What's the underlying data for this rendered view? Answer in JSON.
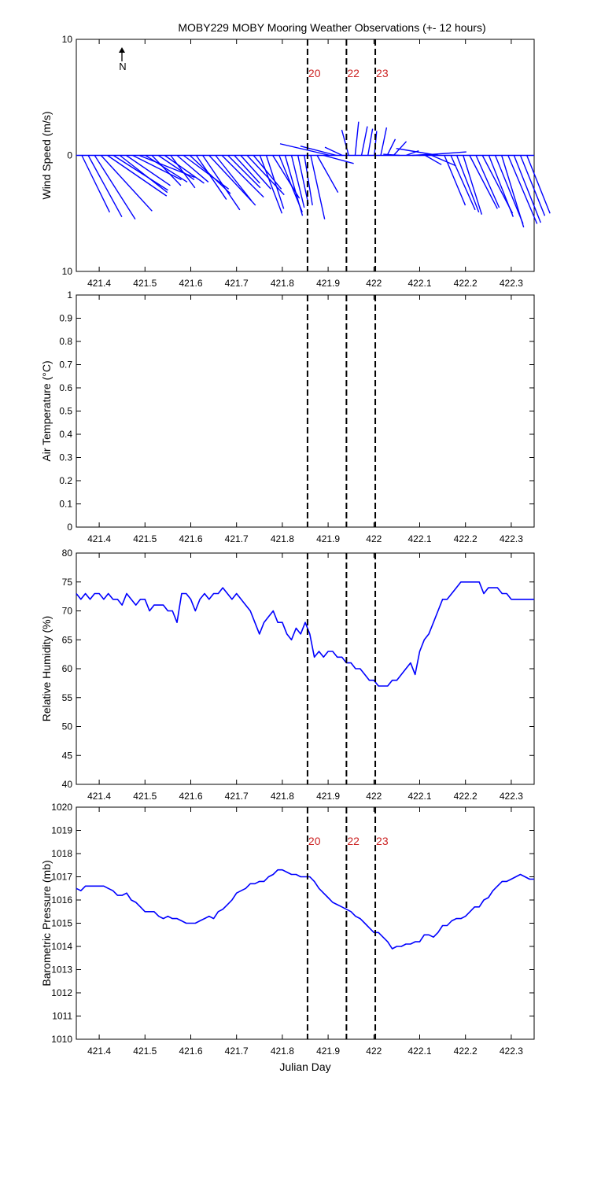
{
  "chart_data": [
    {
      "type": "quiver",
      "title": "MOBY229 MOBY Mooring Weather Observations (+- 12 hours)",
      "ylabel": "Wind Speed (m/s)",
      "xlabel": "",
      "xlim": [
        421.35,
        422.35
      ],
      "ylim": [
        -10,
        10
      ],
      "yticks": [
        {
          "value": 10,
          "label": "10"
        },
        {
          "value": 0,
          "label": "0"
        },
        {
          "value": -10,
          "label": "10"
        }
      ],
      "xticks": [
        "421.4",
        "421.5",
        "421.6",
        "421.7",
        "421.8",
        "421.9",
        "422",
        "422.1",
        "422.2",
        "422.3"
      ],
      "north_label": "N",
      "markers": [
        {
          "x": 421.855,
          "label": "20"
        },
        {
          "x": 421.94,
          "label": "22"
        },
        {
          "x": 422.003,
          "label": "23"
        }
      ],
      "marker_color": "#cc2222",
      "series_color": "#0000ff",
      "x": [
        421.362,
        421.376,
        421.39,
        421.404,
        421.418,
        421.431,
        421.445,
        421.459,
        421.473,
        421.487,
        421.501,
        421.515,
        421.529,
        421.543,
        421.556,
        421.57,
        421.584,
        421.598,
        421.612,
        421.626,
        421.64,
        421.654,
        421.668,
        421.681,
        421.695,
        421.709,
        421.723,
        421.737,
        421.751,
        421.765,
        421.779,
        421.793,
        421.806,
        421.82,
        421.834,
        421.848,
        421.862,
        421.876,
        421.89,
        421.904,
        421.918,
        421.931,
        421.945,
        421.959,
        421.973,
        421.987,
        422.001,
        422.015,
        422.029,
        422.043,
        422.056,
        422.07,
        422.084,
        422.098,
        422.112,
        422.126,
        422.14,
        422.154,
        422.168,
        422.181,
        422.195,
        422.209,
        422.223,
        422.237,
        422.251,
        422.265,
        422.279,
        422.293,
        422.306,
        422.32,
        422.334
      ],
      "u": [
        2.4,
        2.9,
        3.5,
        4.4,
        5.1,
        4.7,
        4.1,
        3.8,
        4.2,
        4.8,
        3.6,
        2.5,
        3.1,
        3.4,
        2.1,
        2.7,
        3.9,
        3.5,
        2.6,
        3.2,
        4.0,
        3.1,
        3.6,
        2.8,
        2.2,
        2.6,
        3.2,
        2.4,
        1.9,
        1.5,
        2.3,
        2.0,
        1.5,
        1.1,
        0.9,
        0.7,
        1.2,
        1.8,
        2.6,
        -4.3,
        -3.1,
        -1.5,
        -0.6,
        0.3,
        0.5,
        0.4,
        0.2,
        0.5,
        0.7,
        1.1,
        -1.4,
        1.1,
        1.6,
        4.1,
        1.4,
        2.1,
        -3.6,
        1.8,
        2.1,
        1.9,
        1.6,
        2.4,
        2.0,
        2.6,
        2.1,
        2.4,
        1.9,
        2.5,
        2.3,
        2.1,
        2.0
      ],
      "v": [
        -4.9,
        -5.3,
        -5.5,
        -4.8,
        -3.5,
        -3.0,
        -3.2,
        -2.6,
        -2.1,
        -1.9,
        -2.3,
        -2.6,
        -2.1,
        -2.4,
        -2.8,
        -2.3,
        -2.9,
        -3.3,
        -3.8,
        -4.7,
        -4.3,
        -3.9,
        -3.6,
        -2.8,
        -2.4,
        -2.9,
        -3.4,
        -2.9,
        -5.0,
        -4.6,
        -3.7,
        -4.9,
        -5.2,
        -4.5,
        -4.2,
        -4.3,
        -5.5,
        -3.2,
        -0.7,
        1.0,
        0.8,
        0.7,
        2.2,
        2.9,
        2.5,
        2.3,
        2.1,
        2.4,
        1.4,
        1.2,
        0.1,
        0.4,
        0.1,
        0.3,
        -0.8,
        -0.9,
        0.6,
        -4.3,
        -4.7,
        -4.9,
        -5.1,
        -4.6,
        -4.5,
        -5.0,
        -5.3,
        -5.9,
        -6.2,
        -5.9,
        -5.8,
        -5.2,
        -5.0
      ]
    },
    {
      "type": "line",
      "title": "",
      "ylabel": "Air Temperature (°C)",
      "xlabel": "",
      "xlim": [
        421.35,
        422.35
      ],
      "ylim": [
        0,
        1
      ],
      "yticks": [
        "0",
        "0.1",
        "0.2",
        "0.3",
        "0.4",
        "0.5",
        "0.6",
        "0.7",
        "0.8",
        "0.9",
        "1"
      ],
      "xticks": [
        "421.4",
        "421.5",
        "421.6",
        "421.7",
        "421.8",
        "421.9",
        "422",
        "422.1",
        "422.2",
        "422.3"
      ],
      "markers": [
        {
          "x": 421.855
        },
        {
          "x": 421.94
        },
        {
          "x": 422.003
        }
      ],
      "series": []
    },
    {
      "type": "line",
      "title": "",
      "ylabel": "Relative Humidity (%)",
      "xlabel": "",
      "xlim": [
        421.35,
        422.35
      ],
      "ylim": [
        40,
        80
      ],
      "yticks": [
        "40",
        "45",
        "50",
        "55",
        "60",
        "65",
        "70",
        "75",
        "80"
      ],
      "xticks": [
        "421.4",
        "421.5",
        "421.6",
        "421.7",
        "421.8",
        "421.9",
        "422",
        "422.1",
        "422.2",
        "422.3"
      ],
      "markers": [
        {
          "x": 421.855
        },
        {
          "x": 421.94
        },
        {
          "x": 422.003
        }
      ],
      "series_color": "#0000ff",
      "x": [
        421.35,
        421.36,
        421.37,
        421.38,
        421.39,
        421.4,
        421.41,
        421.42,
        421.43,
        421.44,
        421.45,
        421.46,
        421.47,
        421.48,
        421.49,
        421.5,
        421.51,
        421.52,
        421.53,
        421.54,
        421.55,
        421.56,
        421.57,
        421.58,
        421.59,
        421.6,
        421.61,
        421.62,
        421.63,
        421.64,
        421.65,
        421.66,
        421.67,
        421.68,
        421.69,
        421.7,
        421.71,
        421.72,
        421.73,
        421.74,
        421.75,
        421.76,
        421.77,
        421.78,
        421.79,
        421.8,
        421.81,
        421.82,
        421.83,
        421.84,
        421.85,
        421.86,
        421.87,
        421.88,
        421.89,
        421.9,
        421.91,
        421.92,
        421.93,
        421.94,
        421.95,
        421.96,
        421.97,
        421.98,
        421.99,
        422.0,
        422.01,
        422.02,
        422.03,
        422.04,
        422.05,
        422.06,
        422.07,
        422.08,
        422.09,
        422.1,
        422.11,
        422.12,
        422.13,
        422.14,
        422.15,
        422.16,
        422.17,
        422.18,
        422.19,
        422.2,
        422.21,
        422.22,
        422.23,
        422.24,
        422.25,
        422.26,
        422.27,
        422.28,
        422.29,
        422.3,
        422.31,
        422.32,
        422.33,
        422.34,
        422.35
      ],
      "y": [
        73,
        72,
        73,
        72,
        73,
        73,
        72,
        73,
        72,
        72,
        71,
        73,
        72,
        71,
        72,
        72,
        70,
        71,
        71,
        71,
        70,
        70,
        68,
        73,
        73,
        72,
        70,
        72,
        73,
        72,
        73,
        73,
        74,
        73,
        72,
        73,
        72,
        71,
        70,
        68,
        66,
        68,
        69,
        70,
        68,
        68,
        66,
        65,
        67,
        66,
        68,
        66,
        62,
        63,
        62,
        63,
        63,
        62,
        62,
        61,
        61,
        60,
        60,
        59,
        58,
        58,
        57,
        57,
        57,
        58,
        58,
        59,
        60,
        61,
        59,
        63,
        65,
        66,
        68,
        70,
        72,
        72,
        73,
        74,
        75,
        75,
        75,
        75,
        75,
        73,
        74,
        74,
        74,
        73,
        73,
        72,
        72,
        72,
        72,
        72,
        72
      ]
    },
    {
      "type": "line",
      "title": "",
      "ylabel": "Barometric Pressure (mb)",
      "xlabel": "Julian Day",
      "xlim": [
        421.35,
        422.35
      ],
      "ylim": [
        1010,
        1020
      ],
      "yticks": [
        "1010",
        "1011",
        "1012",
        "1013",
        "1014",
        "1015",
        "1016",
        "1017",
        "1018",
        "1019",
        "1020"
      ],
      "xticks": [
        "421.4",
        "421.5",
        "421.6",
        "421.7",
        "421.8",
        "421.9",
        "422",
        "422.1",
        "422.2",
        "422.3"
      ],
      "markers": [
        {
          "x": 421.855,
          "label": "20"
        },
        {
          "x": 421.94,
          "label": "22"
        },
        {
          "x": 422.003,
          "label": "23"
        }
      ],
      "marker_color": "#cc2222",
      "series_color": "#0000ff",
      "x": [
        421.35,
        421.36,
        421.37,
        421.38,
        421.39,
        421.4,
        421.41,
        421.42,
        421.43,
        421.44,
        421.45,
        421.46,
        421.47,
        421.48,
        421.49,
        421.5,
        421.51,
        421.52,
        421.53,
        421.54,
        421.55,
        421.56,
        421.57,
        421.58,
        421.59,
        421.6,
        421.61,
        421.62,
        421.63,
        421.64,
        421.65,
        421.66,
        421.67,
        421.68,
        421.69,
        421.7,
        421.71,
        421.72,
        421.73,
        421.74,
        421.75,
        421.76,
        421.77,
        421.78,
        421.79,
        421.8,
        421.81,
        421.82,
        421.83,
        421.84,
        421.85,
        421.86,
        421.87,
        421.88,
        421.89,
        421.9,
        421.91,
        421.92,
        421.93,
        421.94,
        421.95,
        421.96,
        421.97,
        421.98,
        421.99,
        422.0,
        422.01,
        422.02,
        422.03,
        422.04,
        422.05,
        422.06,
        422.07,
        422.08,
        422.09,
        422.1,
        422.11,
        422.12,
        422.13,
        422.14,
        422.15,
        422.16,
        422.17,
        422.18,
        422.19,
        422.2,
        422.21,
        422.22,
        422.23,
        422.24,
        422.25,
        422.26,
        422.27,
        422.28,
        422.29,
        422.3,
        422.31,
        422.32,
        422.33,
        422.34,
        422.35
      ],
      "y": [
        1016.5,
        1016.4,
        1016.6,
        1016.6,
        1016.6,
        1016.6,
        1016.6,
        1016.5,
        1016.4,
        1016.2,
        1016.2,
        1016.3,
        1016.0,
        1015.9,
        1015.7,
        1015.5,
        1015.5,
        1015.5,
        1015.3,
        1015.2,
        1015.3,
        1015.2,
        1015.2,
        1015.1,
        1015.0,
        1015.0,
        1015.0,
        1015.1,
        1015.2,
        1015.3,
        1015.2,
        1015.5,
        1015.6,
        1015.8,
        1016.0,
        1016.3,
        1016.4,
        1016.5,
        1016.7,
        1016.7,
        1016.8,
        1016.8,
        1017.0,
        1017.1,
        1017.3,
        1017.3,
        1017.2,
        1017.1,
        1017.1,
        1017.0,
        1017.0,
        1017.0,
        1016.8,
        1016.5,
        1016.3,
        1016.1,
        1015.9,
        1015.8,
        1015.7,
        1015.6,
        1015.5,
        1015.3,
        1015.2,
        1015.0,
        1014.8,
        1014.6,
        1014.6,
        1014.4,
        1014.2,
        1013.9,
        1014.0,
        1014.0,
        1014.1,
        1014.1,
        1014.2,
        1014.2,
        1014.5,
        1014.5,
        1014.4,
        1014.6,
        1014.9,
        1014.9,
        1015.1,
        1015.2,
        1015.2,
        1015.3,
        1015.5,
        1015.7,
        1015.7,
        1016.0,
        1016.1,
        1016.4,
        1016.6,
        1016.8,
        1016.8,
        1016.9,
        1017.0,
        1017.1,
        1017.0,
        1016.9,
        1016.9
      ]
    }
  ]
}
